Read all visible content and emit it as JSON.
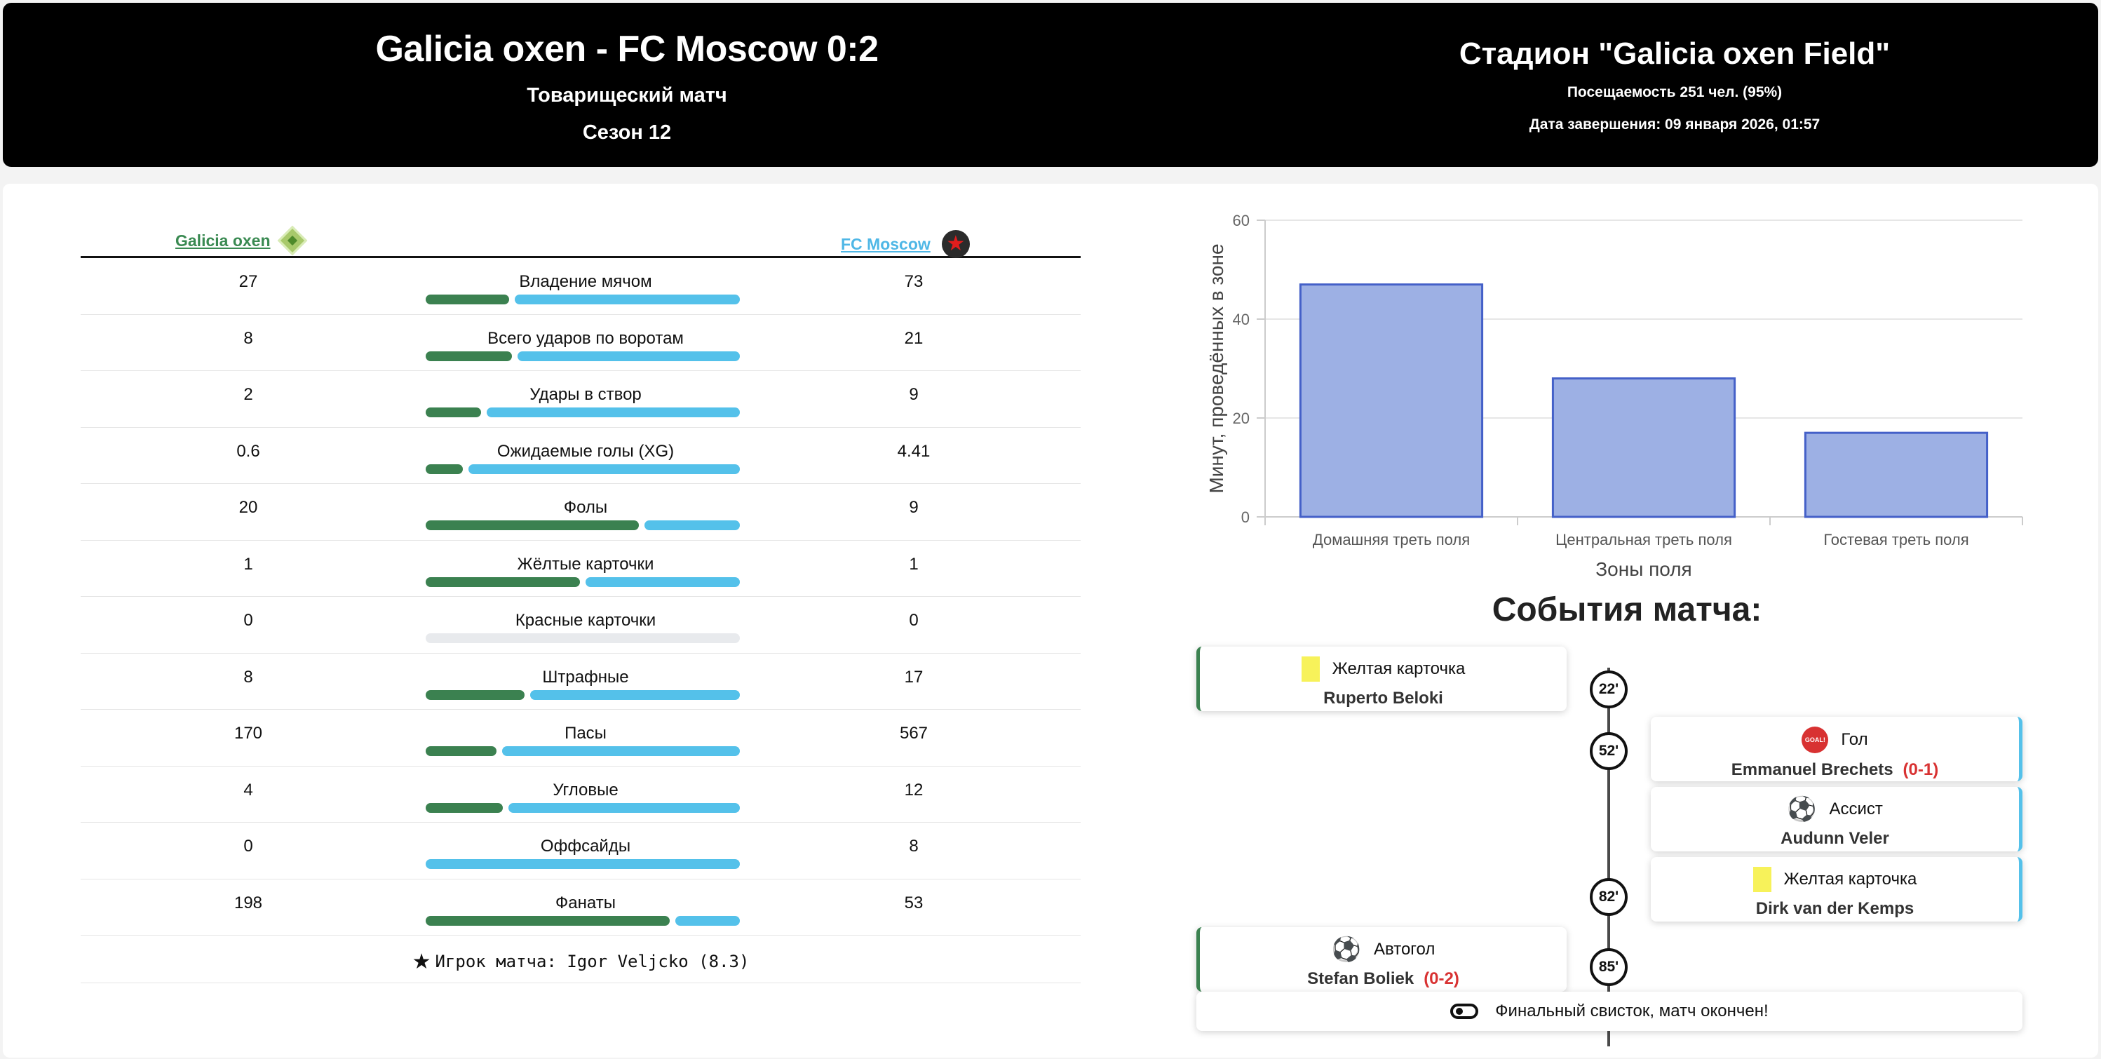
{
  "header": {
    "match_title": "Galicia oxen - FC Moscow 0:2",
    "match_type": "Товарищеский матч",
    "season": "Сезон 12",
    "stadium": "Стадион \"Galicia oxen Field\"",
    "attendance": "Посещаемость 251 чел. (95%)",
    "end_date": "Дата завершения: 09 января 2026, 01:57"
  },
  "teams": {
    "home": {
      "name": "Galicia oxen",
      "color": "#3b8150",
      "logo_icon": "green-diamond-icon"
    },
    "away": {
      "name": "FC Moscow",
      "color": "#54c1ea",
      "logo_icon": "red-star-icon"
    }
  },
  "stats": [
    {
      "label": "Владение мячом",
      "home": "27",
      "away": "73",
      "home_share": 0.27
    },
    {
      "label": "Всего ударов по воротам",
      "home": "8",
      "away": "21",
      "home_share": 0.28
    },
    {
      "label": "Удары в створ",
      "home": "2",
      "away": "9",
      "home_share": 0.18
    },
    {
      "label": "Ожидаемые голы (XG)",
      "home": "0.6",
      "away": "4.41",
      "home_share": 0.12
    },
    {
      "label": "Фолы",
      "home": "20",
      "away": "9",
      "home_share": 0.69
    },
    {
      "label": "Жёлтые карточки",
      "home": "1",
      "away": "1",
      "home_share": 0.5
    },
    {
      "label": "Красные карточки",
      "home": "0",
      "away": "0",
      "home_share": null
    },
    {
      "label": "Штрафные",
      "home": "8",
      "away": "17",
      "home_share": 0.32
    },
    {
      "label": "Пасы",
      "home": "170",
      "away": "567",
      "home_share": 0.23
    },
    {
      "label": "Угловые",
      "home": "4",
      "away": "12",
      "home_share": 0.25
    },
    {
      "label": "Оффсайды",
      "home": "0",
      "away": "8",
      "home_share": 0.0
    },
    {
      "label": "Фанаты",
      "home": "198",
      "away": "53",
      "home_share": 0.79
    }
  ],
  "man_of_match": "Игрок матча: Igor Veljcko (8.3)",
  "chart_data": {
    "type": "bar",
    "categories": [
      "Домашняя треть поля",
      "Центральная треть поля",
      "Гостевая треть поля"
    ],
    "values": [
      47,
      28,
      17
    ],
    "xlabel": "Зоны поля",
    "ylabel": "Минут, проведённых в зоне",
    "ylim": [
      0,
      60
    ],
    "yticks": [
      "0",
      "20",
      "40",
      "60"
    ],
    "bar_color": "#9db0e4",
    "bar_edge": "#4460c8",
    "grid": true
  },
  "events_title": "События матча:",
  "events": [
    {
      "minute": "22'",
      "side": "left",
      "type": "Желтая карточка",
      "icon": "yellow-card-icon",
      "player": "Ruperto Beloki",
      "score": ""
    },
    {
      "minute": "52'",
      "side": "right",
      "type": "Гол",
      "icon": "goal-icon",
      "player": "Emmanuel Brechets",
      "score": "(0-1)"
    },
    {
      "minute": "",
      "side": "right",
      "type": "Ассист",
      "icon": "assist-ball-icon",
      "player": "Audunn Veler",
      "score": ""
    },
    {
      "minute": "82'",
      "side": "right",
      "type": "Желтая карточка",
      "icon": "yellow-card-icon",
      "player": "Dirk van der Kemps",
      "score": ""
    },
    {
      "minute": "85'",
      "side": "left",
      "type": "Автогол",
      "icon": "own-goal-ball-icon",
      "player": "Stefan Boliek",
      "score": "(0-2)"
    }
  ],
  "final_whistle": "Финальный свисток, матч окончен!"
}
